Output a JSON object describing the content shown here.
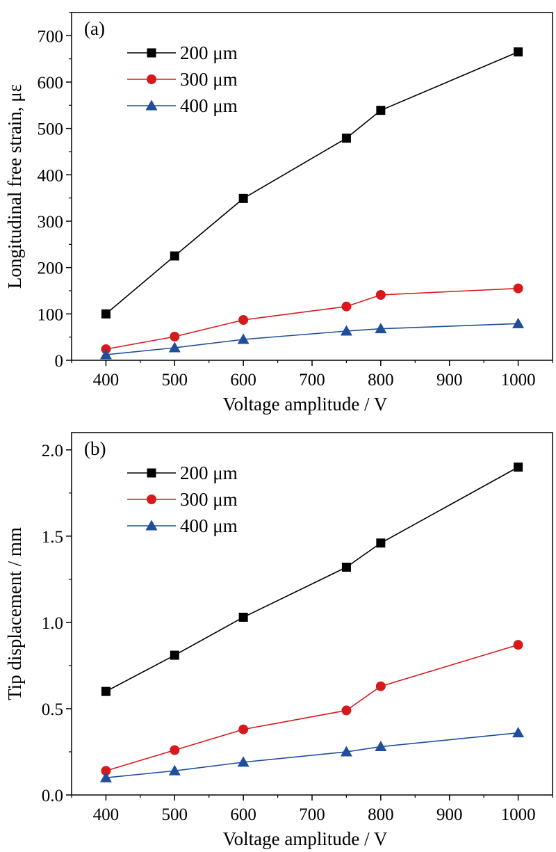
{
  "chart_data": [
    {
      "type": "line",
      "panel_label": "(a)",
      "xlabel": "Voltage amplitude / V",
      "ylabel": "Longitudinal free strain, με",
      "xlim": [
        350,
        1050
      ],
      "ylim": [
        0,
        750
      ],
      "xticks": [
        400,
        500,
        600,
        700,
        800,
        900,
        1000
      ],
      "yticks": [
        0,
        100,
        200,
        300,
        400,
        500,
        600,
        700
      ],
      "ytick_labels": [
        "0",
        "100",
        "200",
        "300",
        "400",
        "500",
        "600",
        "700"
      ],
      "grid": false,
      "legend_position": "top-left",
      "x": [
        400,
        500,
        600,
        750,
        800,
        1000
      ],
      "series": [
        {
          "name": "200 μm",
          "color": "#000000",
          "marker": "square",
          "values": [
            100,
            225,
            349,
            479,
            539,
            665
          ]
        },
        {
          "name": "300 μm",
          "color": "#d7191c",
          "marker": "circle",
          "values": [
            24,
            51,
            87,
            116,
            141,
            155
          ]
        },
        {
          "name": "400 μm",
          "color": "#1f4e9a",
          "marker": "triangle",
          "values": [
            12,
            27,
            45,
            63,
            68,
            79
          ]
        }
      ]
    },
    {
      "type": "line",
      "panel_label": "(b)",
      "xlabel": "Voltage amplitude / V",
      "ylabel": "Tip displacement / mm",
      "xlim": [
        350,
        1050
      ],
      "ylim": [
        0,
        2.1
      ],
      "xticks": [
        400,
        500,
        600,
        700,
        800,
        900,
        1000
      ],
      "yticks": [
        0,
        0.5,
        1.0,
        1.5,
        2.0
      ],
      "ytick_labels": [
        "0.0",
        "0.5",
        "1.0",
        "1.5",
        "2.0"
      ],
      "grid": false,
      "legend_position": "top-left",
      "x": [
        400,
        500,
        600,
        750,
        800,
        1000
      ],
      "series": [
        {
          "name": "200 μm",
          "color": "#000000",
          "marker": "square",
          "values": [
            0.6,
            0.81,
            1.03,
            1.32,
            1.46,
            1.9
          ]
        },
        {
          "name": "300 μm",
          "color": "#d7191c",
          "marker": "circle",
          "values": [
            0.14,
            0.26,
            0.38,
            0.49,
            0.63,
            0.87
          ]
        },
        {
          "name": "400 μm",
          "color": "#1f4e9a",
          "marker": "triangle",
          "values": [
            0.1,
            0.14,
            0.19,
            0.25,
            0.28,
            0.36
          ]
        }
      ]
    }
  ]
}
